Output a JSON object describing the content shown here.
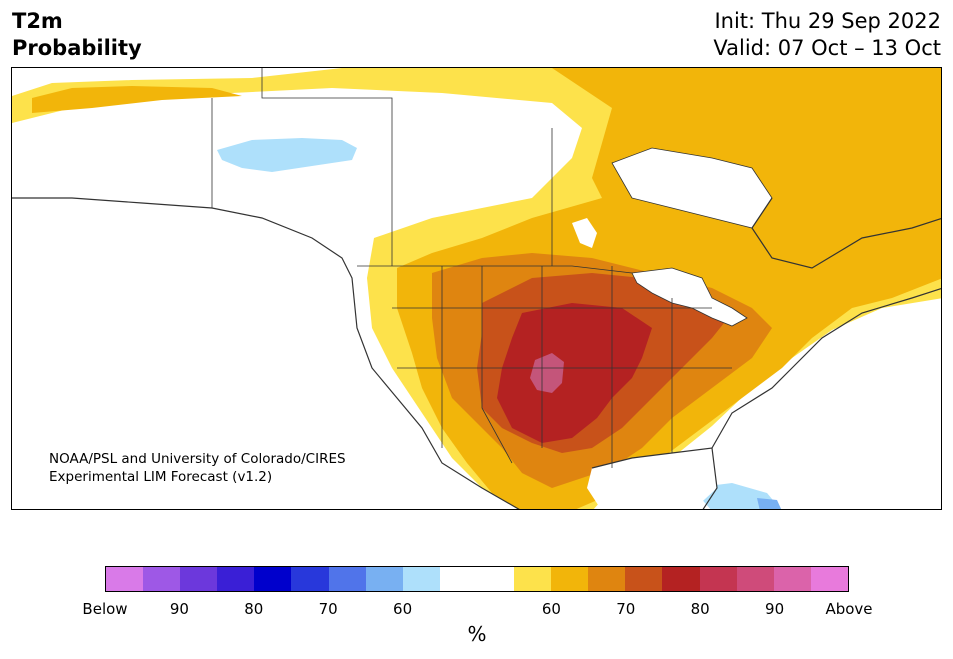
{
  "title_left": [
    "T2m",
    "Probability"
  ],
  "title_right": [
    "Init: Thu 29 Sep 2022",
    "Valid: 07 Oct – 13 Oct"
  ],
  "credit": [
    "NOAA/PSL and University of Colorado/CIRES",
    "Experimental LIM Forecast (v1.2)"
  ],
  "colorbar": {
    "colors": [
      "#d97ae8",
      "#9e58e6",
      "#6c38dc",
      "#3a1fd6",
      "#0000cc",
      "#2838db",
      "#5074ea",
      "#78b0f2",
      "#aee0fb",
      "#ffffff",
      "#ffffff",
      "#fde24b",
      "#f2b50a",
      "#df8510",
      "#c8521a",
      "#b42222",
      "#c43551",
      "#cf4b7a",
      "#db63aa",
      "#e87adc"
    ],
    "tick_labels": [
      "Below",
      "90",
      "80",
      "70",
      "60",
      "60",
      "70",
      "80",
      "90",
      "Above"
    ],
    "unit": "%"
  },
  "map_colors": {
    "above_60": "#fde24b",
    "above_65": "#f2b50a",
    "above_70": "#df8510",
    "above_75": "#c8521a",
    "above_80": "#b42222",
    "above_85": "#c4557a",
    "below_60": "#aee0fb",
    "below_65": "#78b0f2",
    "water": "#ffffff",
    "border": "#333333"
  }
}
